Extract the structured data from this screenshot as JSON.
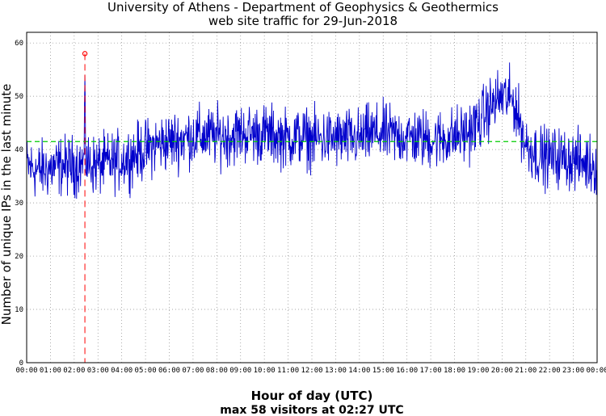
{
  "chart_data": {
    "type": "line",
    "title": "University of Athens - Department of Geophysics & Geothermics",
    "subtitle": "web site traffic for 29-Jun-2018",
    "xlabel": "Hour of day (UTC)",
    "ylabel": "Number of unique IPs in the last minute",
    "footer": "max 58 visitors at 02:27 UTC",
    "x_ticks": [
      "00:00",
      "01:00",
      "02:00",
      "03:00",
      "04:00",
      "05:00",
      "06:00",
      "07:00",
      "08:00",
      "09:00",
      "10:00",
      "11:00",
      "12:00",
      "13:00",
      "14:00",
      "15:00",
      "16:00",
      "17:00",
      "18:00",
      "19:00",
      "20:00",
      "21:00",
      "22:00",
      "23:00",
      "00:00"
    ],
    "y_ticks": [
      "0",
      "10",
      "20",
      "30",
      "40",
      "50",
      "60"
    ],
    "ylim": [
      0,
      62
    ],
    "xlim_hours": [
      0,
      24
    ],
    "grid": true,
    "mean_value": 41.5,
    "max": {
      "hour": 2.45,
      "value": 58
    },
    "series": [
      {
        "color": "#0000cc",
        "hours": [
          0,
          0.5,
          1,
          1.5,
          2,
          2.5,
          3,
          3.5,
          4,
          4.5,
          5,
          5.5,
          6,
          6.5,
          7,
          7.5,
          8,
          8.5,
          9,
          9.5,
          10,
          10.5,
          11,
          11.5,
          12,
          12.5,
          13,
          13.5,
          14,
          14.5,
          15,
          15.5,
          16,
          16.5,
          17,
          17.5,
          18,
          18.5,
          19,
          19.5,
          20,
          20.5,
          21,
          21.5,
          22,
          22.5,
          23,
          23.5,
          24
        ],
        "values": [
          37,
          36,
          36.5,
          37,
          37,
          37.5,
          37,
          37.5,
          38,
          39,
          40,
          41,
          41.5,
          42,
          42.5,
          42.5,
          42.5,
          42.5,
          43,
          43,
          43,
          42.5,
          42,
          42.5,
          42,
          42,
          42,
          42,
          42,
          43,
          43,
          42.5,
          42.5,
          42,
          42,
          42,
          42.5,
          43,
          45,
          48,
          50,
          49,
          41,
          39,
          38.5,
          38.5,
          38,
          37.5,
          37
        ]
      }
    ]
  },
  "colors": {
    "series": "#0000cc",
    "mean_line": "#00cc00",
    "max_marker": "#ff0000",
    "grid": "#888888"
  }
}
